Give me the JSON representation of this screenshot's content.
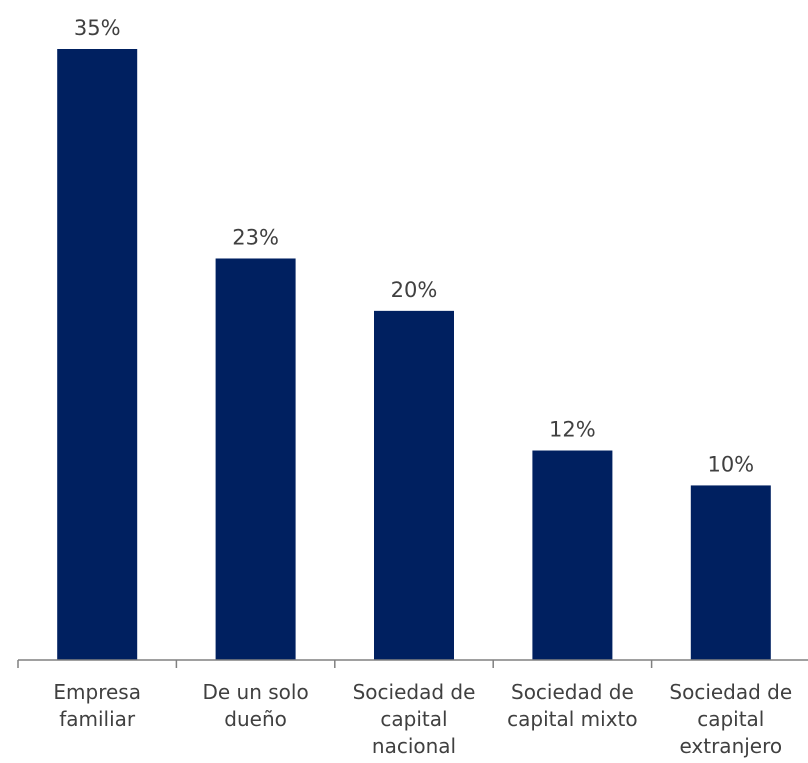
{
  "chart_data": {
    "type": "bar",
    "categories": [
      [
        "Empresa",
        "familiar"
      ],
      [
        "De un solo",
        "dueño"
      ],
      [
        "Sociedad de",
        "capital",
        "nacional"
      ],
      [
        "Sociedad de",
        "capital mixto"
      ],
      [
        "Sociedad de",
        "capital",
        "extranjero"
      ]
    ],
    "values": [
      35,
      23,
      20,
      12,
      10
    ],
    "value_labels": [
      "35%",
      "23%",
      "20%",
      "12%",
      "10%"
    ],
    "ylim": [
      0,
      35
    ],
    "grid": false,
    "legend": "none",
    "colors": {
      "bar": "#002060",
      "text": "#404040",
      "axis": "#808080"
    }
  }
}
